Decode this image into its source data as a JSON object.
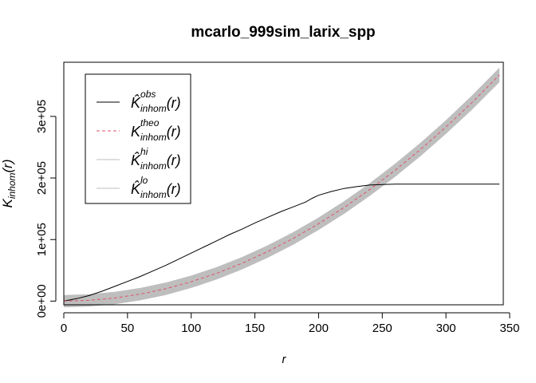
{
  "chart_data": {
    "type": "line",
    "title": "mcarlo_999sim_larix_spp",
    "xlabel": "r",
    "ylabel": {
      "main": "K",
      "sub": "inhom",
      "suffix": "(r)"
    },
    "xlim": [
      0,
      345
    ],
    "ylim": [
      -6000,
      388000
    ],
    "x_ticks": [
      0,
      50,
      100,
      150,
      200,
      250,
      300,
      350
    ],
    "x_tick_labels": [
      "0",
      "50",
      "100",
      "150",
      "200",
      "250",
      "300",
      "350"
    ],
    "y_ticks": [
      0,
      100000,
      200000,
      300000
    ],
    "y_tick_labels": [
      "0e+00",
      "1e+05",
      "2e+05",
      "3e+05"
    ],
    "grid": false,
    "legend_position": "top-left",
    "legend": [
      {
        "base": "K̂",
        "sup": "obs",
        "sub": "inhom",
        "suffix": "(r)",
        "color": "#000000",
        "style": "solid"
      },
      {
        "base": "K",
        "sup": "theo",
        "sub": "inhom",
        "suffix": "(r)",
        "color": "#DF536B",
        "style": "dashed"
      },
      {
        "base": "K̂",
        "sup": "hi",
        "sub": "inhom",
        "suffix": "(r)",
        "color": "#BEBEBE",
        "style": "solid"
      },
      {
        "base": "K̂",
        "sup": "lo",
        "sub": "inhom",
        "suffix": "(r)",
        "color": "#BEBEBE",
        "style": "solid"
      }
    ],
    "series": [
      {
        "key": "obs",
        "color": "#000000",
        "style": "solid",
        "x": [
          0,
          10,
          20,
          30,
          40,
          50,
          60,
          70,
          80,
          90,
          100,
          110,
          120,
          130,
          140,
          150,
          160,
          170,
          180,
          190,
          195,
          200,
          210,
          220,
          230,
          240,
          250,
          260,
          280,
          300,
          320,
          342
        ],
        "y": [
          0,
          4000,
          9000,
          16000,
          24000,
          32000,
          40000,
          49000,
          58000,
          68000,
          78000,
          88000,
          98000,
          108000,
          117000,
          127000,
          136000,
          145000,
          153000,
          161000,
          167000,
          172000,
          178000,
          183000,
          186000,
          188500,
          189500,
          190000,
          190000,
          190000,
          190000,
          190000
        ]
      },
      {
        "key": "theo",
        "color": "#DF536B",
        "style": "dashed",
        "x": [
          0,
          20,
          40,
          60,
          80,
          100,
          120,
          140,
          160,
          180,
          200,
          220,
          240,
          260,
          280,
          300,
          320,
          342
        ],
        "y": [
          0,
          1257,
          5027,
          11310,
          20106,
          31416,
          45239,
          61575,
          80425,
          101788,
          125664,
          152053,
          180956,
          212372,
          246301,
          282743,
          321699,
          367453
        ]
      }
    ],
    "envelope": {
      "color": "#BEBEBE",
      "x": [
        0,
        20,
        40,
        60,
        80,
        100,
        120,
        140,
        160,
        180,
        200,
        220,
        240,
        260,
        280,
        300,
        320,
        342
      ],
      "hi": [
        10000,
        11300,
        15100,
        21400,
        30200,
        41500,
        55300,
        71600,
        90500,
        111900,
        135800,
        162300,
        191400,
        223000,
        257200,
        293900,
        333300,
        379300
      ],
      "lo": [
        -10000,
        -8700,
        -4900,
        1200,
        10000,
        21300,
        35100,
        51500,
        70300,
        91600,
        115500,
        141800,
        170500,
        201700,
        235400,
        271600,
        310100,
        355600
      ]
    }
  }
}
